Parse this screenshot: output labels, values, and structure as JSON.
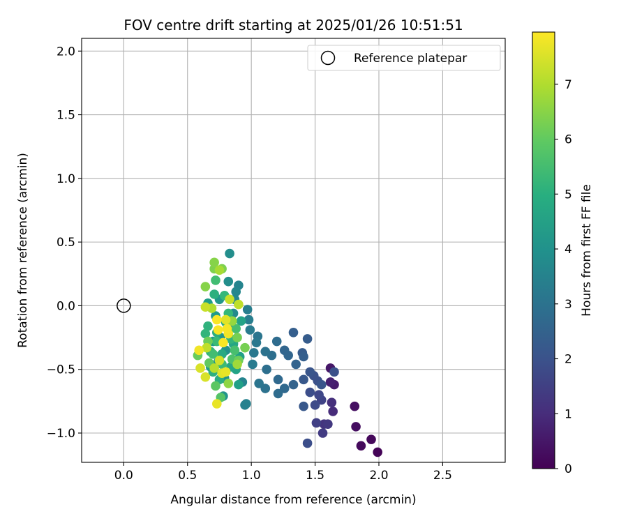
{
  "chart_data": {
    "type": "scatter",
    "title": "FOV centre drift starting at 2025/01/26 10:51:51",
    "xlabel": "Angular distance from reference (arcmin)",
    "ylabel": "Rotation from reference (arcmin)",
    "xlim": [
      -0.33,
      2.99
    ],
    "ylim": [
      -1.23,
      2.1
    ],
    "xticks": [
      0.0,
      0.5,
      1.0,
      1.5,
      2.0,
      2.5
    ],
    "xtick_labels": [
      "0.0",
      "0.5",
      "1.0",
      "1.5",
      "2.0",
      "2.5"
    ],
    "yticks": [
      -1.0,
      -0.5,
      0.0,
      0.5,
      1.0,
      1.5,
      2.0
    ],
    "ytick_labels": [
      "−1.0",
      "−0.5",
      "0.0",
      "0.5",
      "1.0",
      "1.5",
      "2.0"
    ],
    "grid": true,
    "legend": {
      "position": "top-right",
      "entries": [
        "Reference platepar"
      ]
    },
    "reference_point": {
      "x": 0.0,
      "y": 0.0,
      "marker": "open-circle"
    },
    "colorbar": {
      "label": "Hours from first FF file",
      "colormap": "viridis",
      "range": [
        0,
        7.95
      ],
      "ticks": [
        0,
        1,
        2,
        3,
        4,
        5,
        6,
        7
      ],
      "tick_labels": [
        "0",
        "1",
        "2",
        "3",
        "4",
        "5",
        "6",
        "7"
      ]
    },
    "points": [
      {
        "x": 1.99,
        "y": -1.15,
        "h": 0.05
      },
      {
        "x": 1.94,
        "y": -1.05,
        "h": 0.15
      },
      {
        "x": 1.86,
        "y": -1.1,
        "h": 0.2
      },
      {
        "x": 1.82,
        "y": -0.95,
        "h": 0.3
      },
      {
        "x": 1.81,
        "y": -0.79,
        "h": 0.35
      },
      {
        "x": 1.62,
        "y": -0.49,
        "h": 0.5
      },
      {
        "x": 1.65,
        "y": -0.62,
        "h": 0.6
      },
      {
        "x": 1.62,
        "y": -0.6,
        "h": 0.7
      },
      {
        "x": 1.64,
        "y": -0.83,
        "h": 1.0
      },
      {
        "x": 1.63,
        "y": -0.76,
        "h": 1.1
      },
      {
        "x": 1.57,
        "y": -0.93,
        "h": 1.2
      },
      {
        "x": 1.6,
        "y": -0.93,
        "h": 1.3
      },
      {
        "x": 1.56,
        "y": -1.0,
        "h": 1.4
      },
      {
        "x": 1.51,
        "y": -0.92,
        "h": 1.5
      },
      {
        "x": 1.55,
        "y": -0.74,
        "h": 1.6
      },
      {
        "x": 1.53,
        "y": -0.7,
        "h": 1.7
      },
      {
        "x": 1.5,
        "y": -0.78,
        "h": 1.8
      },
      {
        "x": 1.46,
        "y": -0.68,
        "h": 1.9
      },
      {
        "x": 1.44,
        "y": -1.08,
        "h": 1.9
      },
      {
        "x": 1.52,
        "y": -0.59,
        "h": 2.0
      },
      {
        "x": 1.49,
        "y": -0.55,
        "h": 2.0
      },
      {
        "x": 1.46,
        "y": -0.52,
        "h": 2.1
      },
      {
        "x": 1.55,
        "y": -0.62,
        "h": 2.1
      },
      {
        "x": 1.65,
        "y": -0.52,
        "h": 2.0
      },
      {
        "x": 1.41,
        "y": -0.58,
        "h": 2.2
      },
      {
        "x": 1.41,
        "y": -0.79,
        "h": 2.2
      },
      {
        "x": 1.44,
        "y": -0.26,
        "h": 2.3
      },
      {
        "x": 1.4,
        "y": -0.37,
        "h": 2.3
      },
      {
        "x": 1.41,
        "y": -0.4,
        "h": 2.4
      },
      {
        "x": 1.33,
        "y": -0.21,
        "h": 2.4
      },
      {
        "x": 1.35,
        "y": -0.46,
        "h": 2.5
      },
      {
        "x": 1.33,
        "y": -0.62,
        "h": 2.5
      },
      {
        "x": 1.26,
        "y": -0.35,
        "h": 2.6
      },
      {
        "x": 1.29,
        "y": -0.39,
        "h": 2.6
      },
      {
        "x": 1.26,
        "y": -0.65,
        "h": 2.7
      },
      {
        "x": 1.21,
        "y": -0.58,
        "h": 2.7
      },
      {
        "x": 1.21,
        "y": -0.69,
        "h": 2.8
      },
      {
        "x": 1.2,
        "y": -0.28,
        "h": 2.8
      },
      {
        "x": 1.16,
        "y": -0.39,
        "h": 2.9
      },
      {
        "x": 1.12,
        "y": -0.5,
        "h": 2.9
      },
      {
        "x": 1.11,
        "y": -0.36,
        "h": 3.0
      },
      {
        "x": 1.11,
        "y": -0.65,
        "h": 3.0
      },
      {
        "x": 1.06,
        "y": -0.61,
        "h": 3.1
      },
      {
        "x": 1.05,
        "y": -0.24,
        "h": 3.1
      },
      {
        "x": 1.04,
        "y": -0.29,
        "h": 3.2
      },
      {
        "x": 1.02,
        "y": -0.37,
        "h": 3.2
      },
      {
        "x": 1.01,
        "y": -0.46,
        "h": 3.3
      },
      {
        "x": 0.99,
        "y": -0.19,
        "h": 3.3
      },
      {
        "x": 0.98,
        "y": -0.11,
        "h": 3.4
      },
      {
        "x": 0.97,
        "y": -0.03,
        "h": 3.4
      },
      {
        "x": 0.96,
        "y": -0.77,
        "h": 3.5
      },
      {
        "x": 0.95,
        "y": -0.78,
        "h": 3.5
      },
      {
        "x": 0.93,
        "y": -0.6,
        "h": 3.6
      },
      {
        "x": 0.9,
        "y": 0.16,
        "h": 3.6
      },
      {
        "x": 0.88,
        "y": 0.11,
        "h": 3.7
      },
      {
        "x": 0.87,
        "y": 0.05,
        "h": 3.7
      },
      {
        "x": 0.86,
        "y": -0.06,
        "h": 3.8
      },
      {
        "x": 0.84,
        "y": -0.17,
        "h": 3.8
      },
      {
        "x": 0.83,
        "y": 0.41,
        "h": 3.9
      },
      {
        "x": 0.82,
        "y": 0.19,
        "h": 3.9
      },
      {
        "x": 0.8,
        "y": -0.35,
        "h": 4.0
      },
      {
        "x": 0.79,
        "y": -0.57,
        "h": 4.0
      },
      {
        "x": 0.78,
        "y": -0.71,
        "h": 4.1
      },
      {
        "x": 0.76,
        "y": -0.25,
        "h": 4.1
      },
      {
        "x": 0.75,
        "y": 0.05,
        "h": 4.2
      },
      {
        "x": 0.74,
        "y": -0.44,
        "h": 4.2
      },
      {
        "x": 0.72,
        "y": -0.08,
        "h": 4.3
      },
      {
        "x": 0.7,
        "y": -0.28,
        "h": 4.3
      },
      {
        "x": 0.68,
        "y": -0.48,
        "h": 4.4
      },
      {
        "x": 0.66,
        "y": 0.02,
        "h": 4.4
      },
      {
        "x": 0.9,
        "y": -0.62,
        "h": 4.5
      },
      {
        "x": 0.91,
        "y": -0.4,
        "h": 4.5
      },
      {
        "x": 0.92,
        "y": -0.12,
        "h": 4.6
      },
      {
        "x": 0.88,
        "y": -0.5,
        "h": 4.6
      },
      {
        "x": 0.86,
        "y": -0.3,
        "h": 4.7
      },
      {
        "x": 0.84,
        "y": -0.48,
        "h": 4.7
      },
      {
        "x": 0.8,
        "y": -0.13,
        "h": 4.8
      },
      {
        "x": 0.77,
        "y": -0.38,
        "h": 4.8
      },
      {
        "x": 0.75,
        "y": -0.58,
        "h": 4.9
      },
      {
        "x": 0.73,
        "y": -0.21,
        "h": 4.9
      },
      {
        "x": 0.71,
        "y": 0.09,
        "h": 5.0
      },
      {
        "x": 0.7,
        "y": -0.52,
        "h": 5.0
      },
      {
        "x": 0.68,
        "y": -0.36,
        "h": 5.1
      },
      {
        "x": 0.66,
        "y": -0.16,
        "h": 5.1
      },
      {
        "x": 0.64,
        "y": -0.22,
        "h": 5.2
      },
      {
        "x": 0.84,
        "y": -0.26,
        "h": 5.2
      },
      {
        "x": 0.82,
        "y": -0.06,
        "h": 5.3
      },
      {
        "x": 0.79,
        "y": 0.08,
        "h": 5.3
      },
      {
        "x": 0.77,
        "y": -0.46,
        "h": 5.4
      },
      {
        "x": 0.73,
        "y": -0.28,
        "h": 5.4
      },
      {
        "x": 0.72,
        "y": 0.2,
        "h": 5.5
      },
      {
        "x": 0.7,
        "y": -0.38,
        "h": 5.5
      },
      {
        "x": 0.88,
        "y": -0.18,
        "h": 5.6
      },
      {
        "x": 0.87,
        "y": -0.35,
        "h": 5.6
      },
      {
        "x": 0.85,
        "y": -0.42,
        "h": 5.7
      },
      {
        "x": 0.76,
        "y": -0.72,
        "h": 5.8
      },
      {
        "x": 0.72,
        "y": -0.63,
        "h": 5.9
      },
      {
        "x": 0.67,
        "y": -0.45,
        "h": 6.0
      },
      {
        "x": 0.58,
        "y": -0.39,
        "h": 6.1
      },
      {
        "x": 0.66,
        "y": -0.28,
        "h": 6.2
      },
      {
        "x": 0.9,
        "y": -0.43,
        "h": 6.2
      },
      {
        "x": 0.95,
        "y": -0.33,
        "h": 6.3
      },
      {
        "x": 0.89,
        "y": -0.25,
        "h": 6.3
      },
      {
        "x": 0.71,
        "y": 0.29,
        "h": 6.4
      },
      {
        "x": 0.77,
        "y": 0.29,
        "h": 6.4
      },
      {
        "x": 0.64,
        "y": 0.15,
        "h": 6.5
      },
      {
        "x": 0.71,
        "y": 0.34,
        "h": 6.5
      },
      {
        "x": 0.82,
        "y": -0.61,
        "h": 6.6
      },
      {
        "x": 0.85,
        "y": -0.12,
        "h": 6.7
      },
      {
        "x": 0.89,
        "y": -0.46,
        "h": 6.8
      },
      {
        "x": 0.75,
        "y": 0.28,
        "h": 6.9
      },
      {
        "x": 0.69,
        "y": -0.02,
        "h": 7.0
      },
      {
        "x": 0.71,
        "y": -0.49,
        "h": 7.1
      },
      {
        "x": 0.65,
        "y": -0.33,
        "h": 7.2
      },
      {
        "x": 0.9,
        "y": 0.01,
        "h": 7.2
      },
      {
        "x": 0.83,
        "y": 0.05,
        "h": 7.3
      },
      {
        "x": 0.64,
        "y": -0.01,
        "h": 7.3
      },
      {
        "x": 0.75,
        "y": -0.43,
        "h": 7.4
      },
      {
        "x": 0.6,
        "y": -0.49,
        "h": 7.5
      },
      {
        "x": 0.64,
        "y": -0.56,
        "h": 7.5
      },
      {
        "x": 0.8,
        "y": -0.11,
        "h": 7.6
      },
      {
        "x": 0.77,
        "y": -0.53,
        "h": 7.6
      },
      {
        "x": 0.8,
        "y": -0.52,
        "h": 7.7
      },
      {
        "x": 0.73,
        "y": -0.77,
        "h": 7.7
      },
      {
        "x": 0.59,
        "y": -0.35,
        "h": 7.8
      },
      {
        "x": 0.82,
        "y": -0.22,
        "h": 7.8
      },
      {
        "x": 0.81,
        "y": -0.18,
        "h": 7.85
      },
      {
        "x": 0.74,
        "y": -0.19,
        "h": 7.9
      },
      {
        "x": 0.78,
        "y": -0.29,
        "h": 7.9
      },
      {
        "x": 0.73,
        "y": -0.11,
        "h": 7.9
      }
    ]
  }
}
